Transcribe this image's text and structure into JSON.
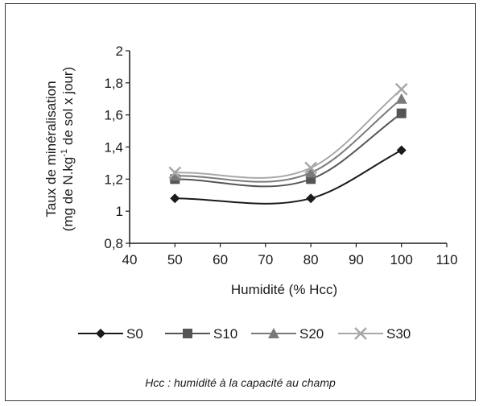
{
  "chart_data": {
    "type": "line",
    "x": [
      50,
      80,
      100
    ],
    "series": [
      {
        "name": "S0",
        "values": [
          1.08,
          1.08,
          1.38
        ],
        "color": "#1a1a1a",
        "marker": "diamond"
      },
      {
        "name": "S10",
        "values": [
          1.2,
          1.2,
          1.61
        ],
        "color": "#555555",
        "marker": "square"
      },
      {
        "name": "S20",
        "values": [
          1.22,
          1.24,
          1.7
        ],
        "color": "#7a7a7a",
        "marker": "triangle"
      },
      {
        "name": "S30",
        "values": [
          1.24,
          1.27,
          1.76
        ],
        "color": "#a8a8a8",
        "marker": "x"
      }
    ],
    "xlabel": "Humidité (% Hcc)",
    "ylabel_line1": "Taux de minéralisation",
    "ylabel_line2_pre": "(mg de N.kg",
    "ylabel_line2_sup": "-1",
    "ylabel_line2_post": " de sol x jour)",
    "xlim": [
      40,
      110
    ],
    "ylim": [
      0.8,
      2.0
    ],
    "xticks": [
      40,
      50,
      60,
      70,
      80,
      90,
      100,
      110
    ],
    "yticks": [
      0.8,
      1.0,
      1.2,
      1.4,
      1.6,
      1.8,
      2.0
    ],
    "ytick_labels": [
      "0,8",
      "1",
      "1,2",
      "1,4",
      "1,6",
      "1,8",
      "2"
    ],
    "grid": false,
    "legend_position": "bottom",
    "footnote": "Hcc : humidité à la capacité au champ"
  }
}
